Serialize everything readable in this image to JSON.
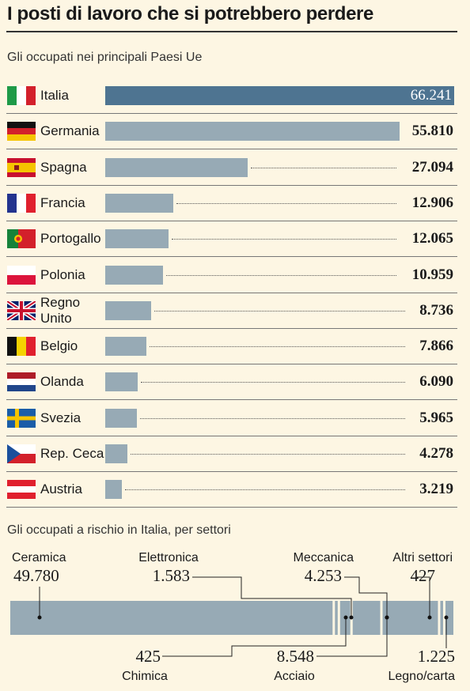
{
  "header": {
    "title": "I posti di lavoro che si potrebbero perdere",
    "subtitle1": "Gli occupati nei principali Paesi Ue",
    "subtitle2": "Gli occupati a rischio in Italia, per settori"
  },
  "chart_data": [
    {
      "type": "bar",
      "orientation": "horizontal",
      "title": "Gli occupati nei principali Paesi Ue",
      "categories": [
        "Italia",
        "Germania",
        "Spagna",
        "Francia",
        "Portogallo",
        "Polonia",
        "Regno Unito",
        "Belgio",
        "Olanda",
        "Svezia",
        "Rep. Ceca",
        "Austria"
      ],
      "value_labels": [
        "66.241",
        "55.810",
        "27.094",
        "12.906",
        "12.065",
        "10.959",
        "8.736",
        "7.866",
        "6.090",
        "5.965",
        "4.278",
        "3.219"
      ],
      "values": [
        66241,
        55810,
        27094,
        12906,
        12065,
        10959,
        8736,
        7866,
        6090,
        5965,
        4278,
        3219
      ],
      "highlight": "Italia",
      "colors": {
        "bar": "#97aab5",
        "highlight": "#4e7491"
      },
      "flags": [
        "italy-flag",
        "germany-flag",
        "spain-flag",
        "france-flag",
        "portugal-flag",
        "poland-flag",
        "uk-flag",
        "belgium-flag",
        "netherlands-flag",
        "sweden-flag",
        "czech-flag",
        "austria-flag"
      ]
    },
    {
      "type": "bar",
      "orientation": "stacked-horizontal",
      "title": "Gli occupati a rischio in Italia, per settori",
      "segments": [
        {
          "name": "Ceramica",
          "label": "49.780",
          "value": 49780
        },
        {
          "name": "Chimica",
          "label": "425",
          "value": 425
        },
        {
          "name": "Elettronica",
          "label": "1.583",
          "value": 1583
        },
        {
          "name": "Meccanica",
          "label": "4.253",
          "value": 4253
        },
        {
          "name": "Acciaio",
          "label": "8.548",
          "value": 8548
        },
        {
          "name": "Altri settori",
          "label": "427",
          "value": 427
        },
        {
          "name": "Legno/carta",
          "label": "1.225",
          "value": 1225
        }
      ],
      "colors": {
        "bar": "#97aab5"
      }
    }
  ]
}
